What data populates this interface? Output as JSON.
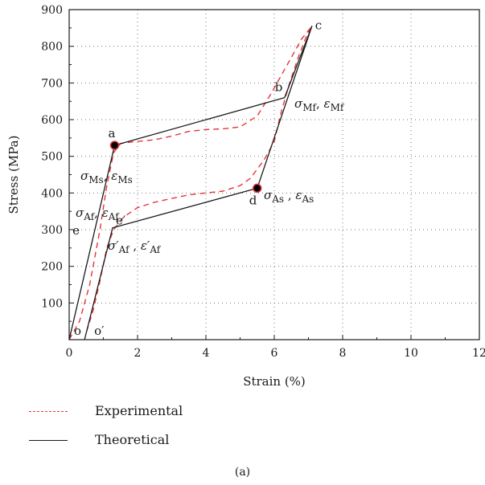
{
  "chart_data": {
    "type": "line",
    "xlabel": "Strain (%)",
    "ylabel": "Stress (MPa)",
    "xlim": [
      0,
      12
    ],
    "ylim": [
      0,
      900
    ],
    "xticks": [
      0,
      2,
      4,
      6,
      8,
      10,
      12
    ],
    "yticks": [
      100,
      200,
      300,
      400,
      500,
      600,
      700,
      800,
      900
    ],
    "grid": true,
    "legend_position": "bottom",
    "series": [
      {
        "name": "Experimental",
        "color": "#e8343a",
        "style": "dashed",
        "points": [
          [
            0.0,
            0
          ],
          [
            0.3,
            50
          ],
          [
            0.6,
            150
          ],
          [
            0.9,
            300
          ],
          [
            1.1,
            420
          ],
          [
            1.3,
            510
          ],
          [
            1.5,
            535
          ],
          [
            1.9,
            540
          ],
          [
            2.5,
            545
          ],
          [
            3.0,
            555
          ],
          [
            3.5,
            568
          ],
          [
            4.0,
            573
          ],
          [
            4.5,
            575
          ],
          [
            5.0,
            580
          ],
          [
            5.5,
            610
          ],
          [
            5.9,
            670
          ],
          [
            6.2,
            720
          ],
          [
            6.5,
            770
          ],
          [
            6.8,
            820
          ],
          [
            7.1,
            855
          ],
          [
            6.95,
            830
          ],
          [
            6.7,
            770
          ],
          [
            6.45,
            700
          ],
          [
            6.2,
            620
          ],
          [
            6.0,
            540
          ],
          [
            5.7,
            490
          ],
          [
            5.3,
            440
          ],
          [
            5.0,
            420
          ],
          [
            4.5,
            405
          ],
          [
            4.0,
            400
          ],
          [
            3.5,
            395
          ],
          [
            3.0,
            385
          ],
          [
            2.5,
            375
          ],
          [
            2.0,
            360
          ],
          [
            1.6,
            335
          ],
          [
            1.3,
            300
          ],
          [
            1.1,
            250
          ],
          [
            0.9,
            160
          ],
          [
            0.7,
            80
          ],
          [
            0.5,
            20
          ]
        ]
      },
      {
        "name": "Theoretical",
        "color": "#1a1a1a",
        "style": "solid",
        "points": [
          [
            0.0,
            0
          ],
          [
            1.33,
            530
          ],
          [
            6.3,
            660
          ],
          [
            7.1,
            855
          ],
          [
            5.5,
            413
          ],
          [
            1.27,
            305
          ],
          [
            0.45,
            0
          ]
        ]
      }
    ],
    "markers": [
      {
        "x": 1.33,
        "y": 530
      },
      {
        "x": 5.5,
        "y": 413
      }
    ],
    "annotations": [
      {
        "x": 1.33,
        "y": 530,
        "label": "a"
      },
      {
        "x": 6.3,
        "y": 660,
        "label": "b"
      },
      {
        "x": 7.1,
        "y": 855,
        "label": "c"
      },
      {
        "x": 5.5,
        "y": 413,
        "label": "d"
      },
      {
        "x": 0.52,
        "y": 300,
        "label": "e"
      },
      {
        "x": 1.27,
        "y": 305,
        "label": "e′"
      },
      {
        "x": 0.0,
        "y": 0,
        "label": "o"
      },
      {
        "x": 0.45,
        "y": 0,
        "label": "o′"
      }
    ],
    "math_labels": {
      "ms": {
        "sigma": "σ",
        "sigma_sub": "Ms",
        "sep": ", ",
        "eps": "ε",
        "eps_sub": "Ms"
      },
      "mf": {
        "sigma": "σ",
        "sigma_sub": "Mf",
        "sep": ", ",
        "eps": "ε",
        "eps_sub": "Mf"
      },
      "as": {
        "sigma": "σ",
        "sigma_sub": "As",
        "sep": " , ",
        "eps": "ε",
        "eps_sub": "As"
      },
      "af": {
        "sigma": "σ",
        "sigma_sub": "Af",
        "sep": ", ",
        "eps": "ε",
        "eps_sub": "Af"
      },
      "af_prime": {
        "sigma": "σ′",
        "sigma_sub": "Af",
        "sep": " , ",
        "eps": "ε′",
        "eps_sub": "Af"
      }
    }
  },
  "legend": {
    "items": [
      {
        "label": "Experimental",
        "color": "#e8343a",
        "style": "dashed"
      },
      {
        "label": "Theoretical",
        "color": "#1a1a1a",
        "style": "solid"
      }
    ]
  },
  "caption": "(a)"
}
